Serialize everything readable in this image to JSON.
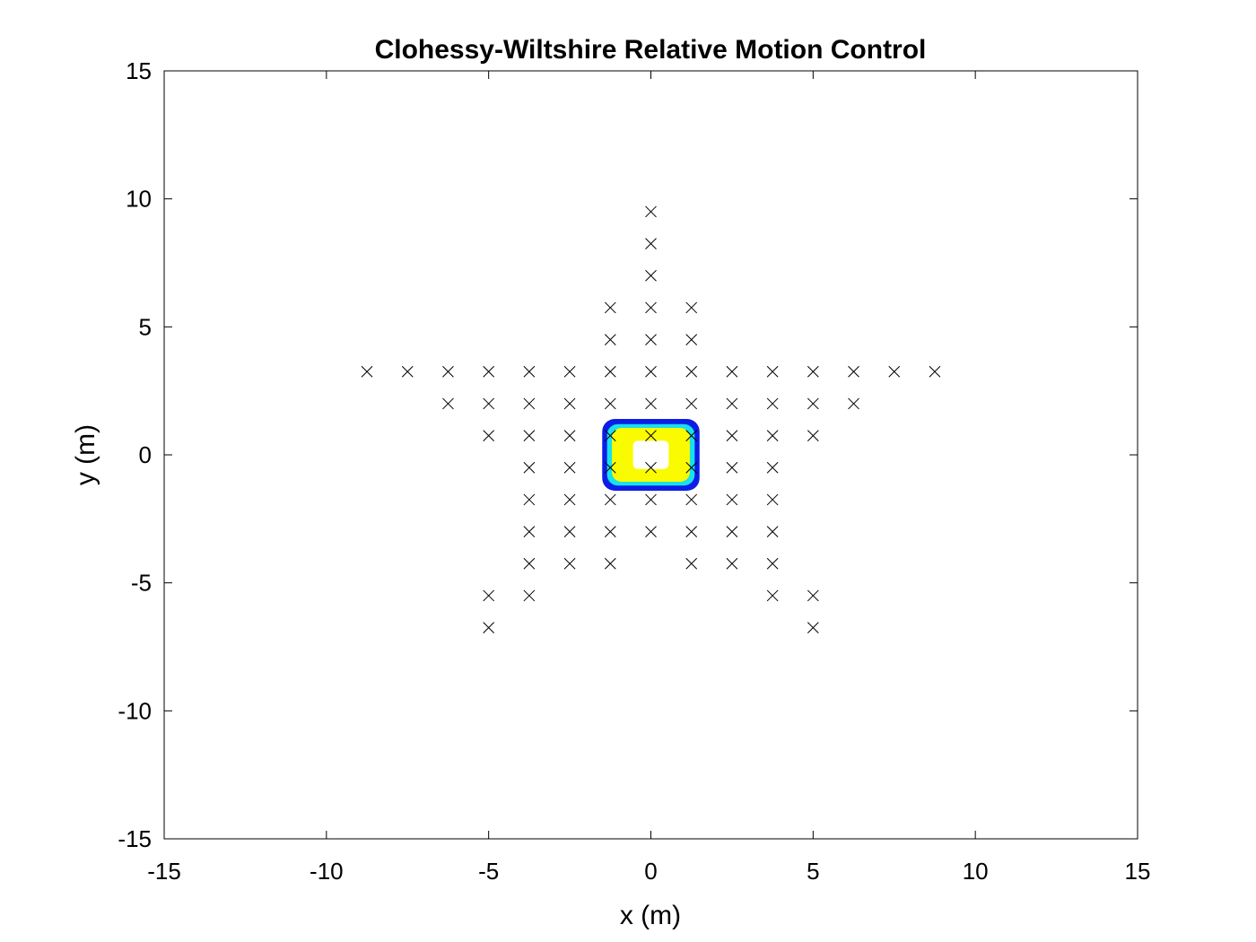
{
  "chart_data": {
    "type": "scatter",
    "title": "Clohessy-Wiltshire Relative Motion Control",
    "xlabel": "x (m)",
    "ylabel": "y (m)",
    "xlim": [
      -15,
      15
    ],
    "ylim": [
      -15,
      15
    ],
    "xticks": [
      "-15",
      "-10",
      "-5",
      "0",
      "5",
      "10",
      "15"
    ],
    "yticks": [
      "15",
      "10",
      "5",
      "0",
      "-5",
      "-10",
      "-15"
    ],
    "grid": false,
    "marker": "x",
    "marker_color": "#000000",
    "points": [
      {
        "x": 0,
        "y": 9.5
      },
      {
        "x": 0,
        "y": 8.25
      },
      {
        "x": 0,
        "y": 7.0
      },
      {
        "x": -1.25,
        "y": 5.75
      },
      {
        "x": 0,
        "y": 5.75
      },
      {
        "x": 1.25,
        "y": 5.75
      },
      {
        "x": -1.25,
        "y": 4.5
      },
      {
        "x": 0,
        "y": 4.5
      },
      {
        "x": 1.25,
        "y": 4.5
      },
      {
        "x": -8.75,
        "y": 3.25
      },
      {
        "x": -7.5,
        "y": 3.25
      },
      {
        "x": -6.25,
        "y": 3.25
      },
      {
        "x": -5.0,
        "y": 3.25
      },
      {
        "x": -3.75,
        "y": 3.25
      },
      {
        "x": -2.5,
        "y": 3.25
      },
      {
        "x": -1.25,
        "y": 3.25
      },
      {
        "x": 0,
        "y": 3.25
      },
      {
        "x": 1.25,
        "y": 3.25
      },
      {
        "x": 2.5,
        "y": 3.25
      },
      {
        "x": 3.75,
        "y": 3.25
      },
      {
        "x": 5.0,
        "y": 3.25
      },
      {
        "x": 6.25,
        "y": 3.25
      },
      {
        "x": 7.5,
        "y": 3.25
      },
      {
        "x": 8.75,
        "y": 3.25
      },
      {
        "x": -6.25,
        "y": 2.0
      },
      {
        "x": -5.0,
        "y": 2.0
      },
      {
        "x": -3.75,
        "y": 2.0
      },
      {
        "x": -2.5,
        "y": 2.0
      },
      {
        "x": -1.25,
        "y": 2.0
      },
      {
        "x": 0,
        "y": 2.0
      },
      {
        "x": 1.25,
        "y": 2.0
      },
      {
        "x": 2.5,
        "y": 2.0
      },
      {
        "x": 3.75,
        "y": 2.0
      },
      {
        "x": 5.0,
        "y": 2.0
      },
      {
        "x": 6.25,
        "y": 2.0
      },
      {
        "x": -5.0,
        "y": 0.75
      },
      {
        "x": -3.75,
        "y": 0.75
      },
      {
        "x": -2.5,
        "y": 0.75
      },
      {
        "x": -1.25,
        "y": 0.75
      },
      {
        "x": 0,
        "y": 0.75
      },
      {
        "x": 1.25,
        "y": 0.75
      },
      {
        "x": 2.5,
        "y": 0.75
      },
      {
        "x": 3.75,
        "y": 0.75
      },
      {
        "x": 5.0,
        "y": 0.75
      },
      {
        "x": -3.75,
        "y": -0.5
      },
      {
        "x": -2.5,
        "y": -0.5
      },
      {
        "x": -1.25,
        "y": -0.5
      },
      {
        "x": 0,
        "y": -0.5
      },
      {
        "x": 1.25,
        "y": -0.5
      },
      {
        "x": 2.5,
        "y": -0.5
      },
      {
        "x": 3.75,
        "y": -0.5
      },
      {
        "x": -3.75,
        "y": -1.75
      },
      {
        "x": -2.5,
        "y": -1.75
      },
      {
        "x": -1.25,
        "y": -1.75
      },
      {
        "x": 0,
        "y": -1.75
      },
      {
        "x": 1.25,
        "y": -1.75
      },
      {
        "x": 2.5,
        "y": -1.75
      },
      {
        "x": 3.75,
        "y": -1.75
      },
      {
        "x": -3.75,
        "y": -3.0
      },
      {
        "x": -2.5,
        "y": -3.0
      },
      {
        "x": -1.25,
        "y": -3.0
      },
      {
        "x": 0,
        "y": -3.0
      },
      {
        "x": 1.25,
        "y": -3.0
      },
      {
        "x": 2.5,
        "y": -3.0
      },
      {
        "x": 3.75,
        "y": -3.0
      },
      {
        "x": -3.75,
        "y": -4.25
      },
      {
        "x": -2.5,
        "y": -4.25
      },
      {
        "x": -1.25,
        "y": -4.25
      },
      {
        "x": 1.25,
        "y": -4.25
      },
      {
        "x": 2.5,
        "y": -4.25
      },
      {
        "x": 3.75,
        "y": -4.25
      },
      {
        "x": -5.0,
        "y": -5.5
      },
      {
        "x": -3.75,
        "y": -5.5
      },
      {
        "x": 3.75,
        "y": -5.5
      },
      {
        "x": 5.0,
        "y": -5.5
      },
      {
        "x": -5.0,
        "y": -6.75
      },
      {
        "x": 5.0,
        "y": -6.75
      }
    ],
    "contour_region": {
      "center": [
        0,
        0
      ],
      "levels": [
        {
          "color": "#0b1de6",
          "half_width": 1.5,
          "half_height": 1.4
        },
        {
          "color": "#19e0ea",
          "half_width": 1.35,
          "half_height": 1.2
        },
        {
          "color": "#fbfb00",
          "half_width": 1.2,
          "half_height": 1.05
        },
        {
          "color": "#ffffff",
          "half_width": 0.55,
          "half_height": 0.55
        }
      ]
    }
  }
}
